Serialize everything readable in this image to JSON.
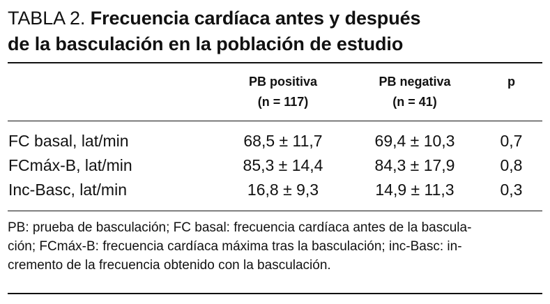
{
  "title": {
    "label": "TABLA 2.",
    "line1": "Frecuencia cardíaca antes y después",
    "line2": "de la basculación en la población de estudio"
  },
  "table": {
    "headers": [
      {
        "line1": "",
        "line2": ""
      },
      {
        "line1": "PB positiva",
        "line2": "(n = 117)"
      },
      {
        "line1": "PB negativa",
        "line2": "(n = 41)"
      },
      {
        "line1": "p",
        "line2": ""
      }
    ],
    "rows": [
      {
        "label": "FC basal, lat/min",
        "pb_positiva": "68,5 ± 11,7",
        "pb_negativa": "69,4 ± 10,3",
        "p": "0,7"
      },
      {
        "label": "FCmáx-B, lat/min",
        "pb_positiva": "85,3 ± 14,4",
        "pb_negativa": "84,3 ± 17,9",
        "p": "0,8"
      },
      {
        "label": "Inc-Basc, lat/min",
        "pb_positiva": "16,8 ± 9,3",
        "pb_negativa": "14,9 ± 11,3",
        "p": "0,3"
      }
    ]
  },
  "footnote": {
    "line1": "PB: prueba de basculación; FC basal: frecuencia cardíaca antes de la bascula-",
    "line2": "ción; FCmáx-B: frecuencia cardíaca máxima tras la basculación; inc-Basc: in-",
    "line3": "cremento de la frecuencia obtenido con la basculación."
  }
}
